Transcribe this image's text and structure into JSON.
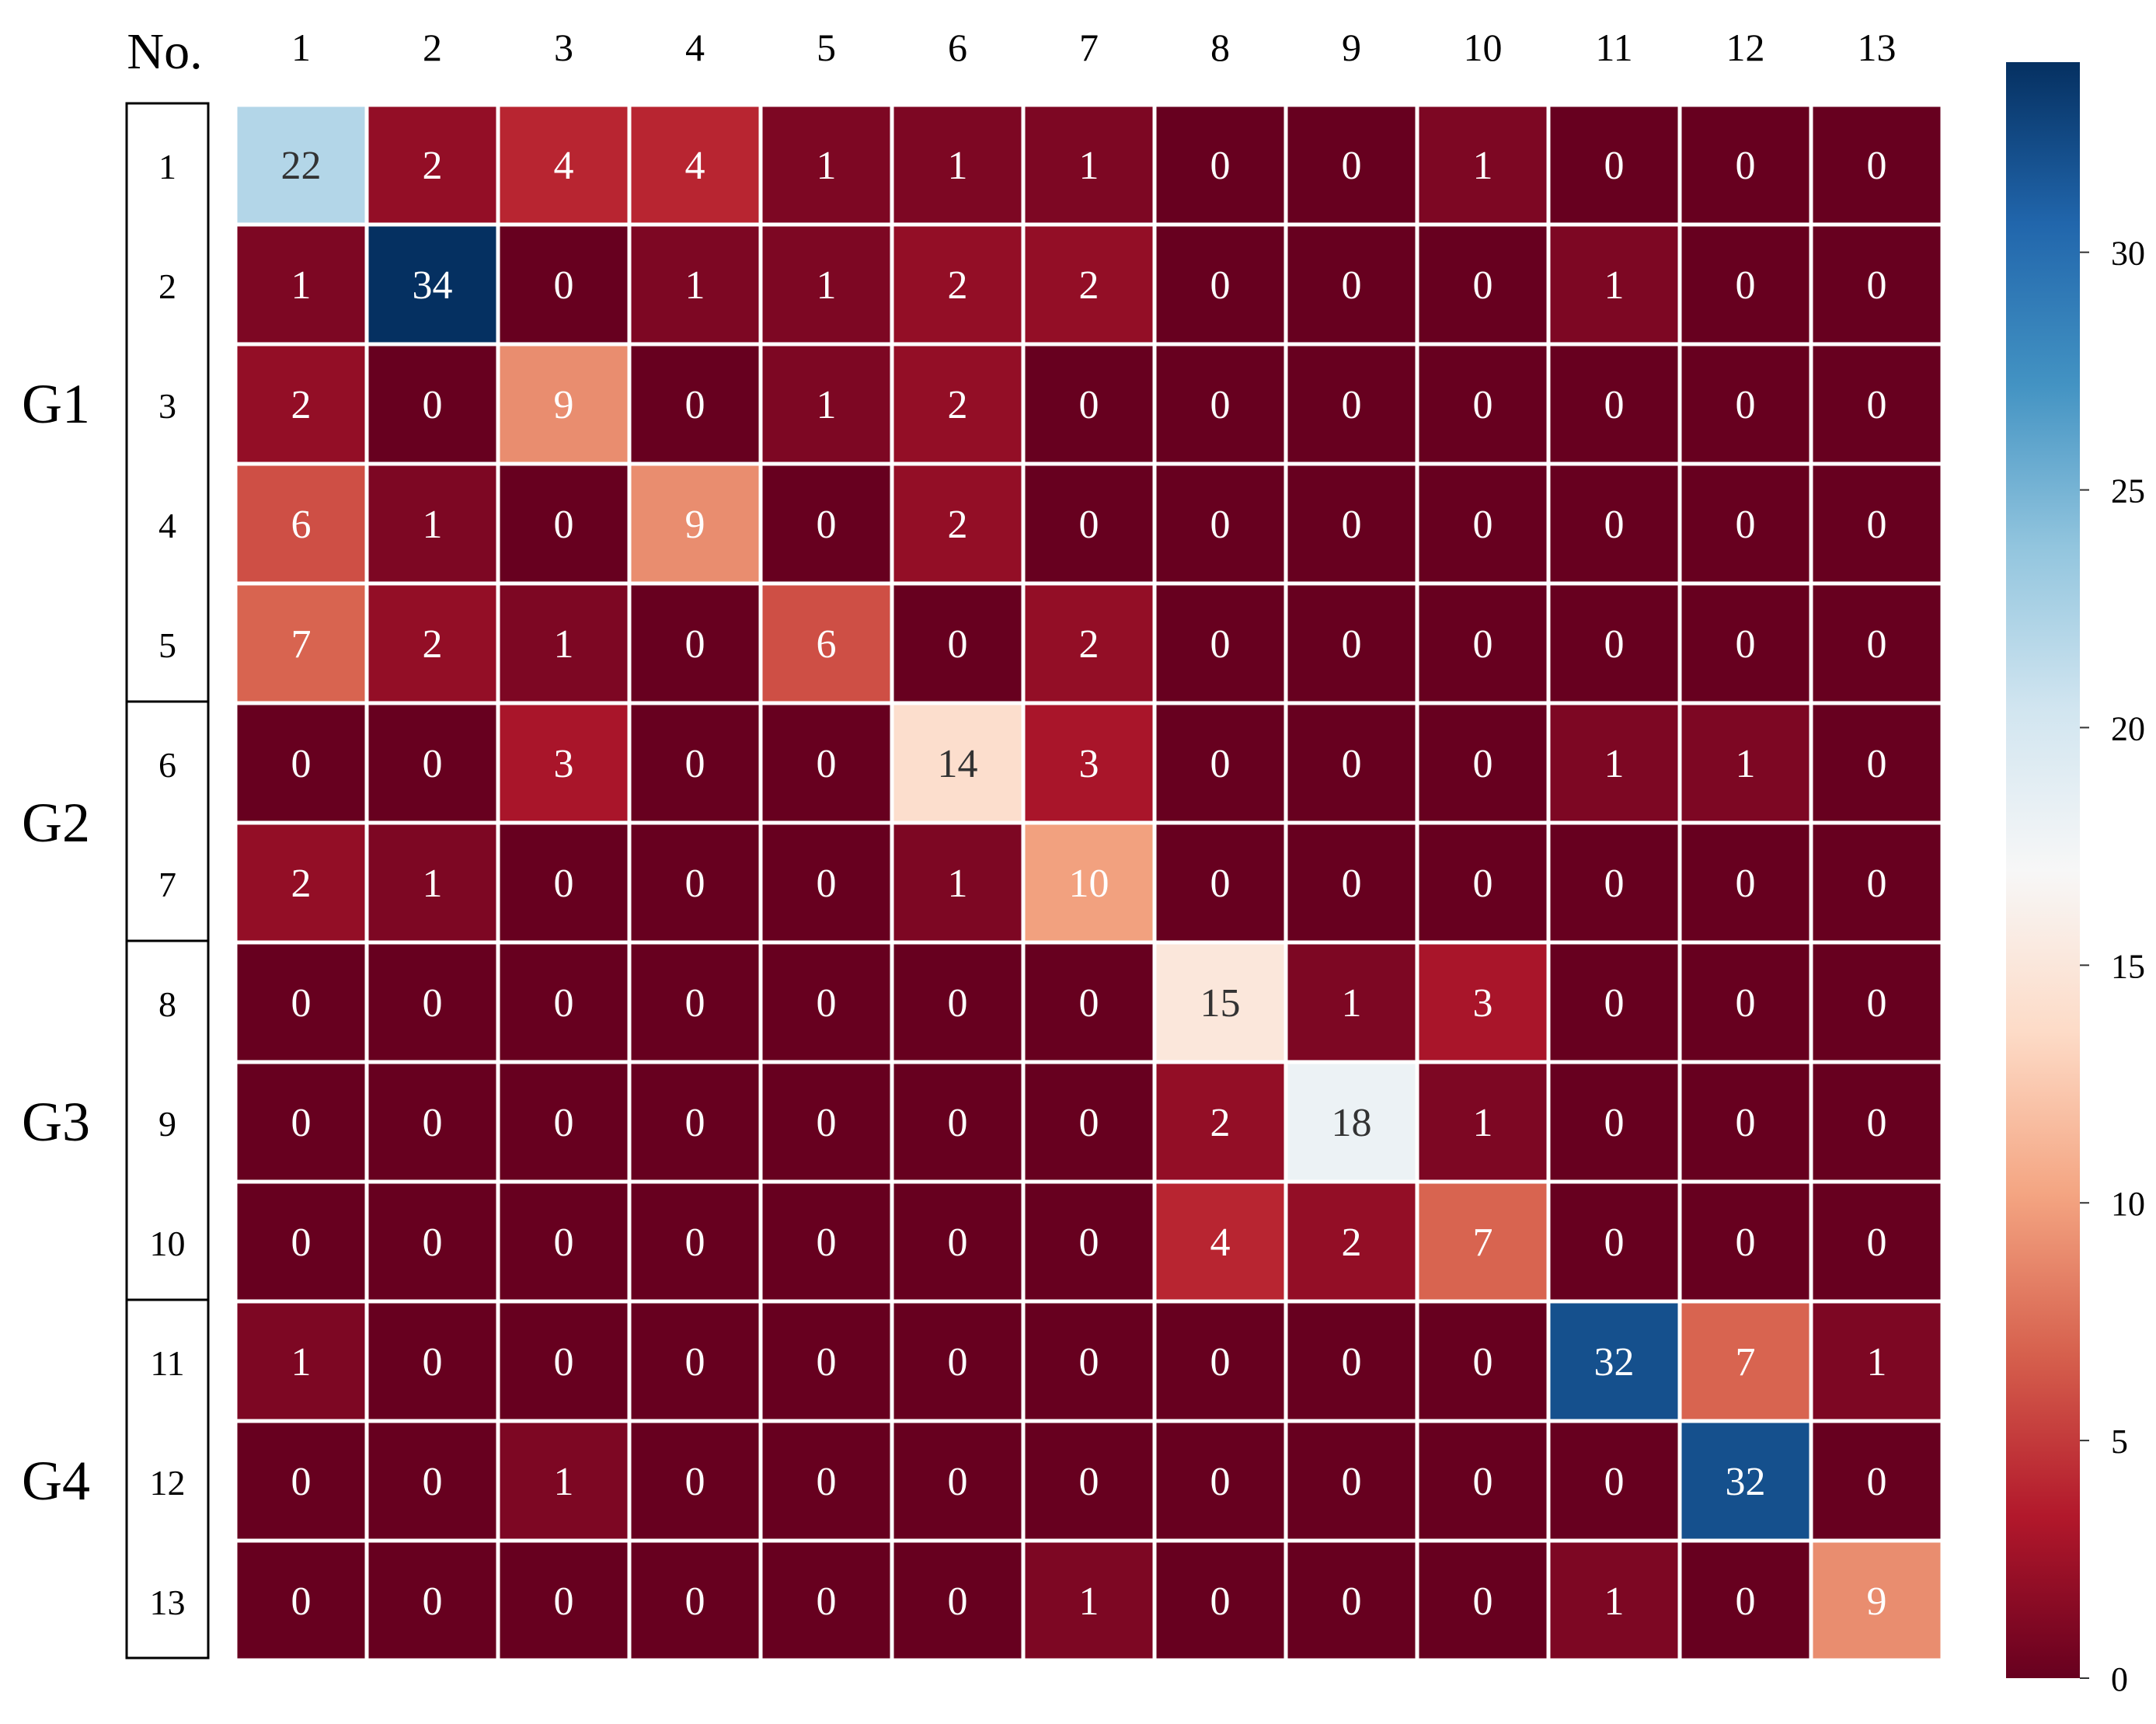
{
  "chart_data": {
    "type": "heatmap",
    "corner_label": "No.",
    "columns": [
      "1",
      "2",
      "3",
      "4",
      "5",
      "6",
      "7",
      "8",
      "9",
      "10",
      "11",
      "12",
      "13"
    ],
    "rows": [
      "1",
      "2",
      "3",
      "4",
      "5",
      "6",
      "7",
      "8",
      "9",
      "10",
      "11",
      "12",
      "13"
    ],
    "groups": [
      {
        "label": "G1",
        "rows": [
          "1",
          "2",
          "3",
          "4",
          "5"
        ]
      },
      {
        "label": "G2",
        "rows": [
          "6",
          "7"
        ]
      },
      {
        "label": "G3",
        "rows": [
          "8",
          "9",
          "10"
        ]
      },
      {
        "label": "G4",
        "rows": [
          "11",
          "12",
          "13"
        ]
      }
    ],
    "values": [
      [
        22,
        2,
        4,
        4,
        1,
        1,
        1,
        0,
        0,
        1,
        0,
        0,
        0
      ],
      [
        1,
        34,
        0,
        1,
        1,
        2,
        2,
        0,
        0,
        0,
        1,
        0,
        0
      ],
      [
        2,
        0,
        9,
        0,
        1,
        2,
        0,
        0,
        0,
        0,
        0,
        0,
        0
      ],
      [
        6,
        1,
        0,
        9,
        0,
        2,
        0,
        0,
        0,
        0,
        0,
        0,
        0
      ],
      [
        7,
        2,
        1,
        0,
        6,
        0,
        2,
        0,
        0,
        0,
        0,
        0,
        0
      ],
      [
        0,
        0,
        3,
        0,
        0,
        14,
        3,
        0,
        0,
        0,
        1,
        1,
        0
      ],
      [
        2,
        1,
        0,
        0,
        0,
        1,
        10,
        0,
        0,
        0,
        0,
        0,
        0
      ],
      [
        0,
        0,
        0,
        0,
        0,
        0,
        0,
        15,
        1,
        3,
        0,
        0,
        0
      ],
      [
        0,
        0,
        0,
        0,
        0,
        0,
        0,
        2,
        18,
        1,
        0,
        0,
        0
      ],
      [
        0,
        0,
        0,
        0,
        0,
        0,
        0,
        4,
        2,
        7,
        0,
        0,
        0
      ],
      [
        1,
        0,
        0,
        0,
        0,
        0,
        0,
        0,
        0,
        0,
        32,
        7,
        1
      ],
      [
        0,
        0,
        1,
        0,
        0,
        0,
        0,
        0,
        0,
        0,
        0,
        32,
        0
      ],
      [
        0,
        0,
        0,
        0,
        0,
        0,
        1,
        0,
        0,
        0,
        1,
        0,
        9
      ]
    ],
    "colorbar": {
      "range": [
        0,
        34
      ],
      "ticks": [
        "0",
        "5",
        "10",
        "15",
        "20",
        "25",
        "30"
      ],
      "colormap": "RdBu",
      "stops": [
        {
          "value": 0,
          "color": "#67001f"
        },
        {
          "value": 3.4,
          "color": "#b2182b"
        },
        {
          "value": 6.8,
          "color": "#d6604d"
        },
        {
          "value": 10.2,
          "color": "#f4a582"
        },
        {
          "value": 13.6,
          "color": "#fddbc7"
        },
        {
          "value": 17,
          "color": "#f7f7f7"
        },
        {
          "value": 20.4,
          "color": "#d1e5f0"
        },
        {
          "value": 23.8,
          "color": "#92c5de"
        },
        {
          "value": 27.2,
          "color": "#4393c3"
        },
        {
          "value": 30.6,
          "color": "#2166ac"
        },
        {
          "value": 34,
          "color": "#053061"
        }
      ]
    },
    "grid": true,
    "legend": "right"
  }
}
